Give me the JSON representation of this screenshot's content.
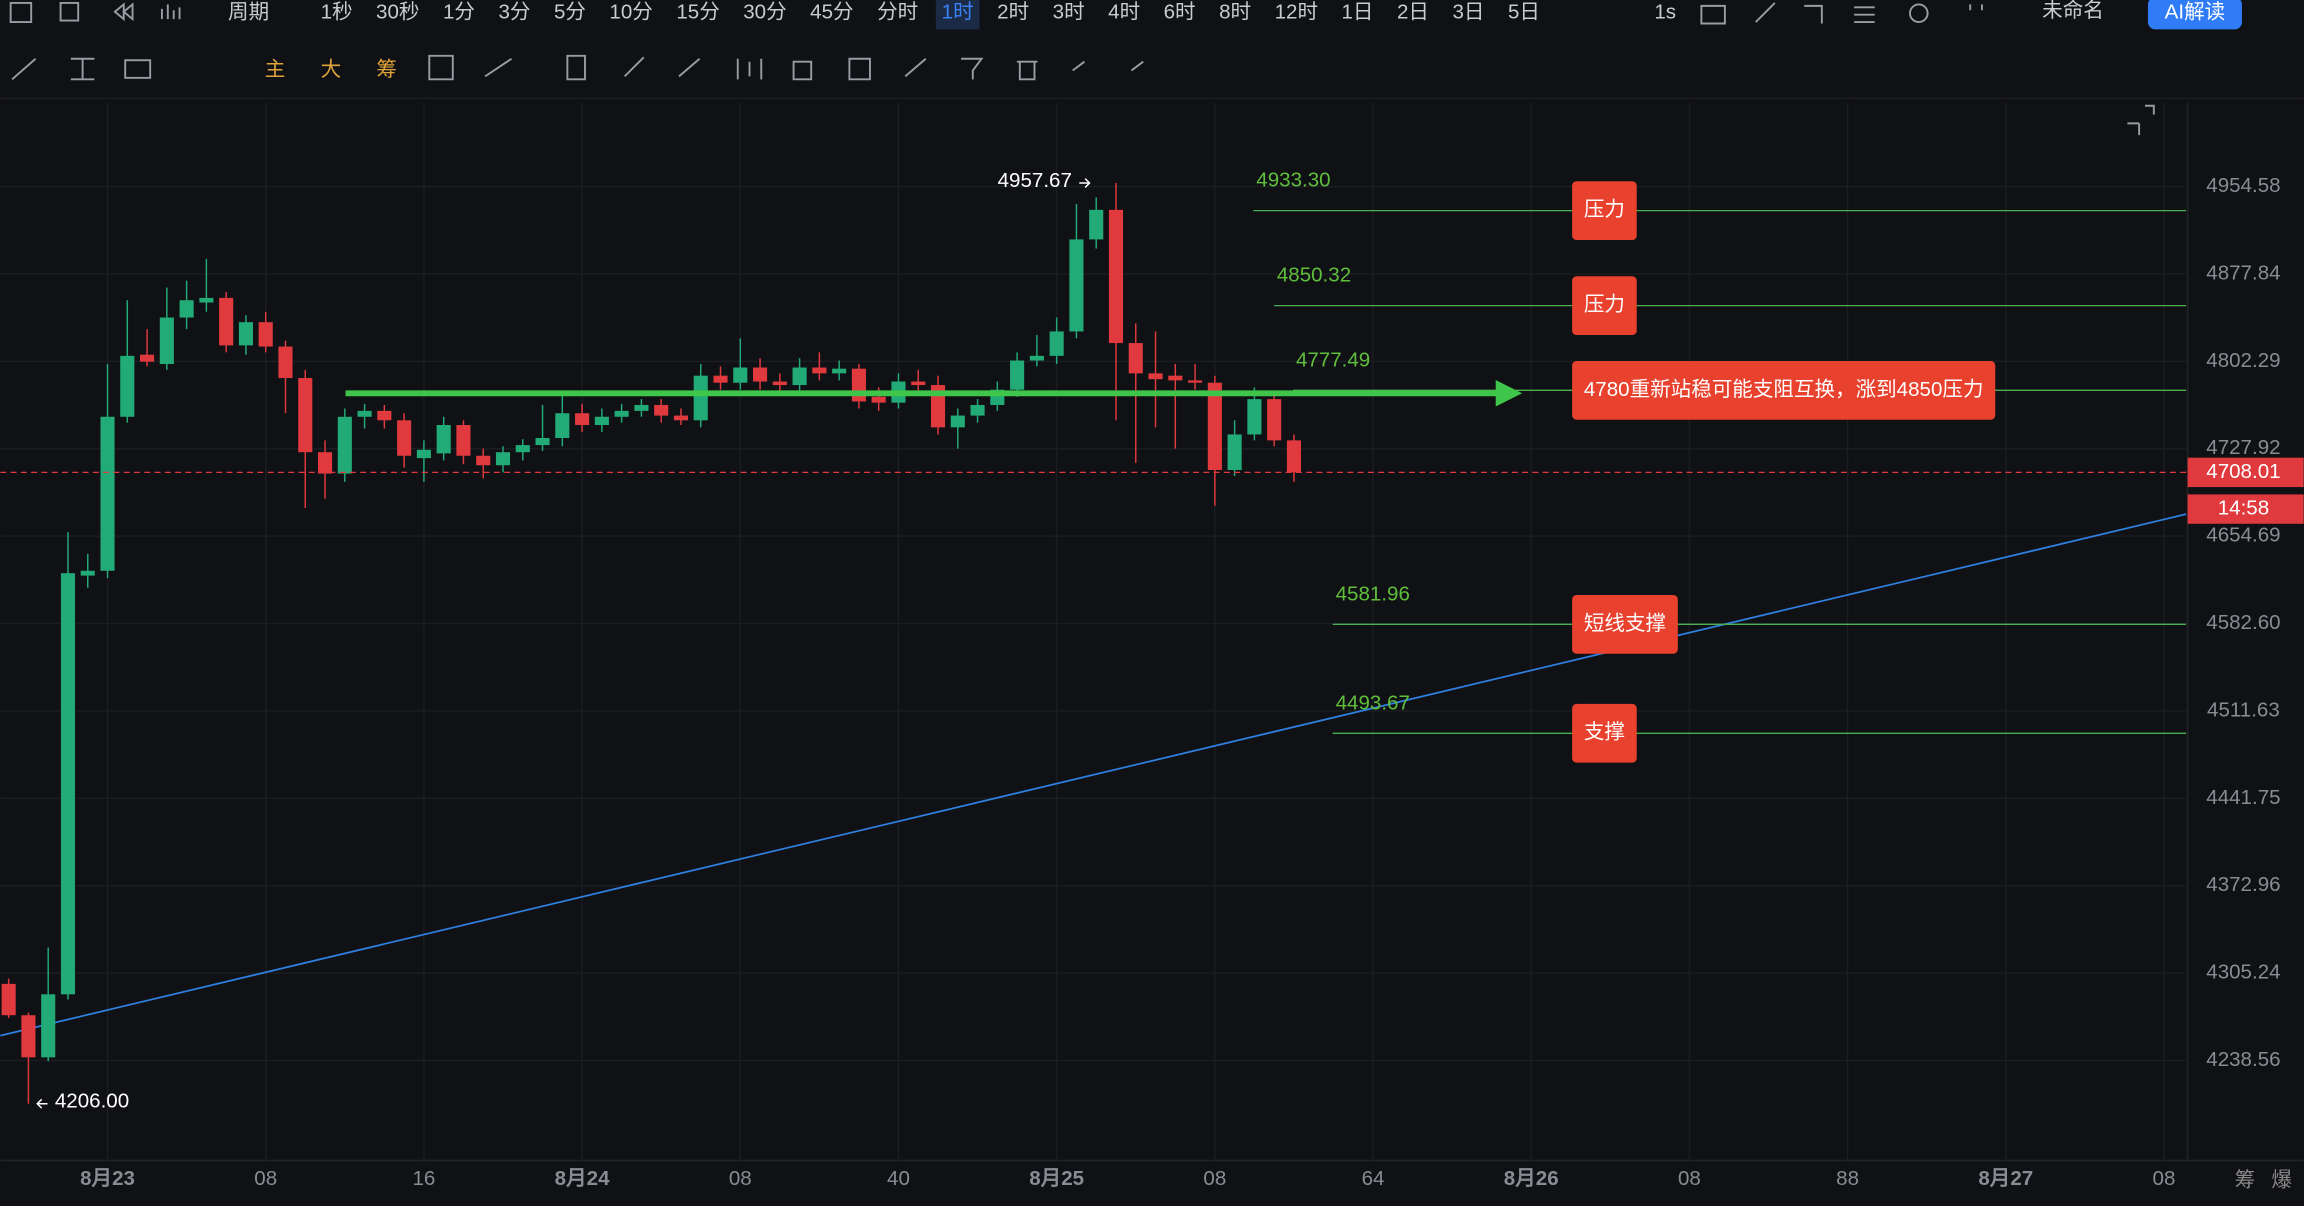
{
  "toolbar": {
    "period_menu": "周期",
    "periods": [
      {
        "label": "1秒"
      },
      {
        "label": "30秒"
      },
      {
        "label": "1分"
      },
      {
        "label": "3分"
      },
      {
        "label": "5分"
      },
      {
        "label": "10分"
      },
      {
        "label": "15分"
      },
      {
        "label": "30分"
      },
      {
        "label": "45分"
      },
      {
        "label": "分时"
      },
      {
        "label": "1时",
        "active": true
      },
      {
        "label": "2时"
      },
      {
        "label": "3时"
      },
      {
        "label": "4时"
      },
      {
        "label": "6时"
      },
      {
        "label": "8时"
      },
      {
        "label": "12时"
      },
      {
        "label": "1日"
      },
      {
        "label": "2日"
      },
      {
        "label": "3日"
      },
      {
        "label": "5日"
      }
    ],
    "interval": "1s",
    "workspace": "未命名",
    "ai_button": "AI解读",
    "indicator_buttons": [
      "主",
      "大",
      "筹"
    ],
    "corner_buttons": [
      "筹",
      "爆"
    ]
  },
  "chart_data": {
    "type": "candlestick",
    "log_scale": true,
    "grid": true,
    "up_color": "#22ab77",
    "down_color": "#e0393e",
    "x": [
      -5,
      -4,
      -3,
      -2,
      -1,
      0,
      1,
      2,
      3,
      4,
      5,
      6,
      7,
      8,
      9,
      10,
      11,
      12,
      13,
      14,
      15,
      16,
      17,
      18,
      19,
      20,
      21,
      22,
      23,
      24,
      25,
      26,
      27,
      28,
      29,
      30,
      31,
      32,
      33,
      34,
      35,
      36,
      37,
      38,
      39,
      40,
      41,
      42,
      43,
      44,
      45,
      46,
      47,
      48,
      49,
      50,
      51,
      52,
      53,
      54,
      55,
      56,
      57,
      58,
      59,
      60
    ],
    "open": [
      4297,
      4273,
      4241,
      4289,
      4622,
      4626,
      4755,
      4808,
      4800,
      4840,
      4853,
      4857,
      4816,
      4836,
      4815,
      4788,
      4725,
      4707,
      4755,
      4760,
      4752,
      4720,
      4724,
      4748,
      4722,
      4714,
      4725,
      4731,
      4737,
      4758,
      4748,
      4755,
      4760,
      4765,
      4756,
      4752,
      4790,
      4784,
      4797,
      4785,
      4782,
      4797,
      4792,
      4796,
      4772,
      4767,
      4785,
      4782,
      4746,
      4756,
      4765,
      4778,
      4803,
      4807,
      4828,
      4908,
      4934,
      4818,
      4792,
      4790,
      4786,
      4784,
      4710,
      4740,
      4770,
      4735
    ],
    "high": [
      4301,
      4275,
      4325,
      4658,
      4640,
      4800,
      4855,
      4830,
      4866,
      4872,
      4891,
      4862,
      4842,
      4845,
      4820,
      4795,
      4735,
      4762,
      4766,
      4765,
      4758,
      4735,
      4755,
      4752,
      4728,
      4730,
      4736,
      4765,
      4775,
      4766,
      4762,
      4766,
      4770,
      4770,
      4762,
      4800,
      4798,
      4822,
      4805,
      4792,
      4805,
      4810,
      4803,
      4800,
      4780,
      4792,
      4795,
      4790,
      4762,
      4770,
      4785,
      4810,
      4825,
      4840,
      4939,
      4945,
      4957.67,
      4835,
      4828,
      4800,
      4800,
      4790,
      4752,
      4780,
      4776,
      4740
    ],
    "low": [
      4271,
      4206,
      4238,
      4285,
      4612,
      4620,
      4750,
      4798,
      4795,
      4830,
      4845,
      4810,
      4808,
      4810,
      4758,
      4678,
      4686,
      4700,
      4745,
      4745,
      4712,
      4700,
      4718,
      4715,
      4703,
      4708,
      4718,
      4726,
      4730,
      4742,
      4742,
      4750,
      4755,
      4750,
      4748,
      4746,
      4778,
      4778,
      4778,
      4776,
      4776,
      4786,
      4786,
      4762,
      4760,
      4762,
      4776,
      4740,
      4728,
      4750,
      4760,
      4772,
      4798,
      4800,
      4822,
      4900,
      4752,
      4716,
      4746,
      4728,
      4778,
      4680,
      4705,
      4735,
      4730,
      4700
    ],
    "close": [
      4273,
      4241,
      4289,
      4624,
      4626,
      4755,
      4807,
      4802,
      4840,
      4855,
      4857,
      4816,
      4836,
      4815,
      4788,
      4725,
      4707,
      4755,
      4760,
      4752,
      4722,
      4727,
      4748,
      4722,
      4714,
      4725,
      4731,
      4737,
      4758,
      4748,
      4755,
      4760,
      4765,
      4756,
      4752,
      4790,
      4784,
      4797,
      4785,
      4782,
      4797,
      4792,
      4796,
      4768,
      4767,
      4785,
      4782,
      4746,
      4756,
      4765,
      4778,
      4803,
      4807,
      4828,
      4908,
      4934,
      4818,
      4792,
      4787,
      4786,
      4784,
      4710,
      4740,
      4770,
      4735,
      4708.01
    ],
    "xlim": [
      -5.42,
      105.12
    ],
    "xticks": [
      {
        "value": 0,
        "label": "8月23"
      },
      {
        "value": 8,
        "label": "08"
      },
      16,
      {
        "value": 24,
        "label": "8月24"
      },
      {
        "value": 32,
        "label": "08"
      },
      40,
      {
        "value": 48,
        "label": "8月25"
      },
      {
        "value": 56,
        "label": "08"
      },
      64,
      {
        "value": 72,
        "label": "8月26"
      },
      {
        "value": 80,
        "label": "08"
      },
      88,
      {
        "value": 96,
        "label": "8月27"
      },
      {
        "value": 104,
        "label": "08"
      }
    ],
    "ylim": [
      4163.6,
      5029.2
    ],
    "yticks": [
      4954.58,
      4877.84,
      4802.29,
      4727.92,
      4654.69,
      {
        "value": 4582.6,
        "label": "4582.60"
      },
      4511.63,
      4441.75,
      4372.96,
      4305.24,
      4238.56
    ],
    "levels": [
      {
        "value": 4933.3,
        "value_label": "4933.30",
        "tag": "压力"
      },
      {
        "value": 4850.32,
        "tag": "压力"
      },
      {
        "value": 4777.49,
        "tag": "4780重新站稳可能支阻互换，涨到4850压力"
      },
      {
        "value": 4581.96,
        "tag": "短线支撑"
      },
      {
        "value": 4493.67,
        "tag": "支撑"
      }
    ],
    "trendline": {
      "x": [
        -5.42,
        105.12
      ],
      "values": [
        4257.5,
        4673
      ]
    },
    "high_label": 4957.67,
    "low_label": {
      "value": 4206,
      "label": "4206.00"
    },
    "countdown": "14:58"
  }
}
